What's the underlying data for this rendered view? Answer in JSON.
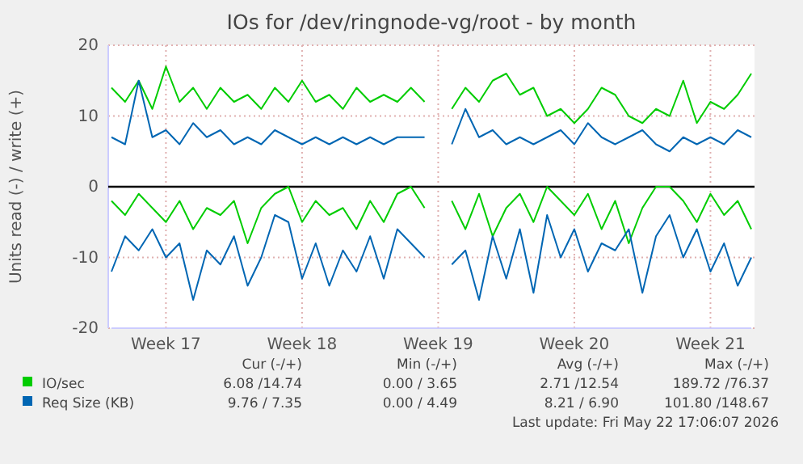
{
  "chart_data": {
    "type": "line",
    "title": "IOs for /dev/ringnode-vg/root - by month",
    "ylabel": "Units read (-) / write (+)",
    "categories": [
      null,
      null,
      null,
      null,
      "Week 17",
      null,
      null,
      null,
      null,
      null,
      null,
      null,
      null,
      null,
      "Week 18",
      null,
      null,
      null,
      null,
      null,
      null,
      null,
      null,
      null,
      "Week 19",
      null,
      null,
      null,
      null,
      null,
      null,
      null,
      null,
      null,
      "Week 20",
      null,
      null,
      null,
      null,
      null,
      null,
      null,
      null,
      null,
      "Week 21",
      null,
      null,
      null
    ],
    "ylim": [
      -20,
      20
    ],
    "yticks": [
      -20,
      -10,
      0,
      10,
      20
    ],
    "grid": true,
    "legend": "bottom",
    "marker": "none",
    "line_style": "solid",
    "ref_lines": [
      {
        "axis": "y",
        "value": 0,
        "color": "#000000"
      }
    ],
    "series": [
      {
        "name": "IO/sec",
        "color": "#00cc00",
        "values": [
          14,
          12,
          15,
          11,
          17,
          12,
          14,
          11,
          14,
          12,
          13,
          11,
          14,
          12,
          15,
          12,
          13,
          11,
          14,
          12,
          13,
          12,
          14,
          12,
          null,
          11,
          14,
          12,
          15,
          16,
          13,
          14,
          10,
          11,
          9,
          11,
          14,
          13,
          10,
          9,
          11,
          10,
          15,
          9,
          12,
          11,
          13,
          16
        ]
      },
      {
        "color": "#00cc00",
        "values": [
          -2,
          -4,
          -1,
          -3,
          -5,
          -2,
          -6,
          -3,
          -4,
          -2,
          -8,
          -3,
          -1,
          0,
          -5,
          -2,
          -4,
          -3,
          -6,
          -2,
          -5,
          -1,
          0,
          -3,
          null,
          -2,
          -6,
          -1,
          -7,
          -3,
          -1,
          -5,
          0,
          -2,
          -4,
          -1,
          -6,
          -2,
          -8,
          -3,
          0,
          0,
          -2,
          -5,
          -1,
          -4,
          -2,
          -6
        ]
      },
      {
        "name": "Req Size (KB)",
        "color": "#0066b3",
        "values": [
          7,
          6,
          15,
          7,
          8,
          6,
          9,
          7,
          8,
          6,
          7,
          6,
          8,
          7,
          6,
          7,
          6,
          7,
          6,
          7,
          6,
          7,
          7,
          7,
          null,
          6,
          11,
          7,
          8,
          6,
          7,
          6,
          7,
          8,
          6,
          9,
          7,
          6,
          7,
          8,
          6,
          5,
          7,
          6,
          7,
          6,
          8,
          7
        ]
      },
      {
        "color": "#0066b3",
        "values": [
          -12,
          -7,
          -9,
          -6,
          -10,
          -8,
          -16,
          -9,
          -11,
          -7,
          -14,
          -10,
          -4,
          -5,
          -13,
          -8,
          -14,
          -9,
          -12,
          -7,
          -13,
          -6,
          -8,
          -10,
          null,
          -11,
          -9,
          -16,
          -7,
          -13,
          -6,
          -15,
          -4,
          -10,
          -6,
          -12,
          -8,
          -9,
          -6,
          -15,
          -7,
          -4,
          -10,
          -6,
          -12,
          -8,
          -14,
          -10
        ]
      }
    ],
    "annotations": [
      "Cur (-/+)",
      "Min (-/+)",
      "Avg (-/+)",
      "Max (-/+)",
      "6.08 /14.74",
      "0.00 / 3.65",
      "2.71 /12.54",
      "189.72 /76.37",
      "9.76 / 7.35",
      "0.00 / 4.49",
      "8.21 / 6.90",
      "101.80 /148.67",
      "Last update: Fri May 22 17:06:07 2026"
    ]
  }
}
